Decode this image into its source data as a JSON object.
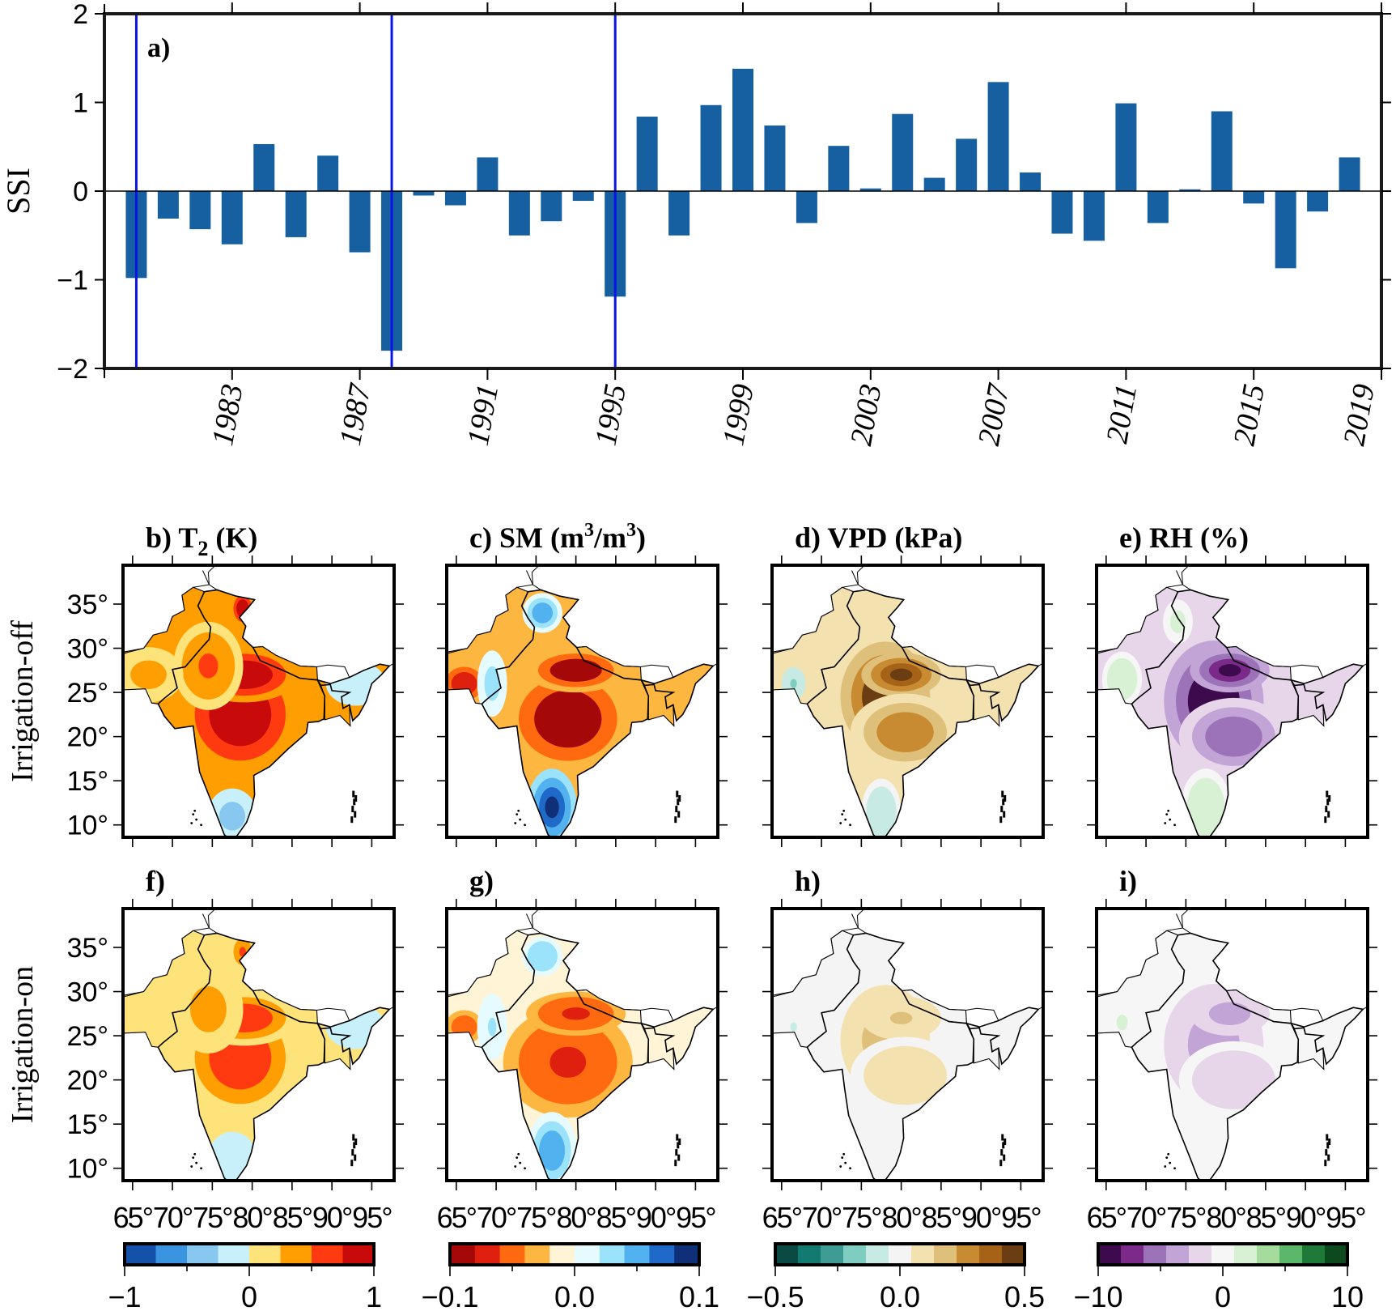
{
  "chart_data": [
    {
      "id": "a",
      "type": "bar",
      "panel_label": "a)",
      "title": "",
      "xlabel": "",
      "ylabel": "SSI",
      "ylim": [
        -2,
        2
      ],
      "yticks": [
        -2,
        -1,
        0,
        1,
        2
      ],
      "ytick_labels": [
        "−2",
        "−1",
        "0",
        "1",
        "2"
      ],
      "xlim": [
        1979,
        2019
      ],
      "xticks": [
        1983,
        1987,
        1991,
        1995,
        1999,
        2003,
        2007,
        2011,
        2015,
        2019
      ],
      "xtick_labels": [
        "1983",
        "1987",
        "1991",
        "1995",
        "1999",
        "2003",
        "2007",
        "2011",
        "2015",
        "2019"
      ],
      "bar_color": "#1660a2",
      "x": [
        1980,
        1981,
        1982,
        1983,
        1984,
        1985,
        1986,
        1987,
        1988,
        1989,
        1990,
        1991,
        1992,
        1993,
        1994,
        1995,
        1996,
        1997,
        1998,
        1999,
        2000,
        2001,
        2002,
        2003,
        2004,
        2005,
        2006,
        2007,
        2008,
        2009,
        2010,
        2011,
        2012,
        2013,
        2014,
        2015,
        2016,
        2017,
        2018
      ],
      "values": [
        -0.98,
        -0.31,
        -0.43,
        -0.6,
        0.53,
        -0.52,
        0.4,
        -0.69,
        -1.8,
        -0.05,
        -0.16,
        0.38,
        -0.5,
        -0.34,
        -0.11,
        -1.19,
        0.84,
        -0.5,
        0.97,
        1.38,
        0.74,
        -0.36,
        0.51,
        0.03,
        0.87,
        0.15,
        0.59,
        1.23,
        0.21,
        -0.48,
        -0.56,
        0.99,
        -0.36,
        0.02,
        0.9,
        -0.14,
        -0.87,
        -0.23,
        0.38
      ],
      "highlight_years": [
        1980,
        1988,
        1995
      ],
      "highlight_color": "#0a14e6",
      "grid": false,
      "zero_line": true
    },
    {
      "type": "heatmap",
      "description": "Spatial maps over South Asia, composite anomalies",
      "row_labels": [
        "Irrigation-off",
        "Irrigation-on"
      ],
      "lon_ticks": [
        65,
        70,
        75,
        80,
        85,
        90,
        95
      ],
      "lat_ticks": [
        35,
        30,
        25,
        20,
        15,
        10
      ],
      "lon_tick_labels": [
        "65°",
        "70°",
        "75°",
        "80°",
        "85°",
        "90°",
        "95°"
      ],
      "lat_tick_labels": [
        "35°",
        "30°",
        "25°",
        "20°",
        "15°",
        "10°"
      ],
      "panels": [
        {
          "id": "b",
          "label": "b)",
          "variable": "T2",
          "title": "b) T",
          "title_sub": "2",
          "title_unit": " (K)",
          "row": 0,
          "col": 0,
          "intensity": 1.0
        },
        {
          "id": "c",
          "label": "c)",
          "variable": "SM",
          "title": "c) SM (m",
          "title_sup1": "3",
          "title_mid": "/m",
          "title_sup2": "3",
          "title_end": ")",
          "row": 0,
          "col": 1,
          "intensity": 1.0
        },
        {
          "id": "d",
          "label": "d)",
          "variable": "VPD",
          "title": "d) VPD (kPa)",
          "row": 0,
          "col": 2,
          "intensity": 1.0
        },
        {
          "id": "e",
          "label": "e)",
          "variable": "RH",
          "title": "e) RH (%)",
          "row": 0,
          "col": 3,
          "intensity": 1.0
        },
        {
          "id": "f",
          "label": "f)",
          "variable": "T2",
          "title": "f)",
          "row": 1,
          "col": 0,
          "intensity": 0.6
        },
        {
          "id": "g",
          "label": "g)",
          "variable": "SM",
          "title": "g)",
          "row": 1,
          "col": 1,
          "intensity": 0.7
        },
        {
          "id": "h",
          "label": "h)",
          "variable": "VPD",
          "title": "h)",
          "row": 1,
          "col": 2,
          "intensity": 0.35
        },
        {
          "id": "i",
          "label": "i)",
          "variable": "RH",
          "title": "i)",
          "row": 1,
          "col": 3,
          "intensity": 0.4
        }
      ],
      "colorbars": [
        {
          "variable": "T2",
          "range": [
            -1,
            1
          ],
          "tick_labels": [
            "−1",
            "0",
            "1"
          ],
          "ticks": [
            -1,
            -0.5,
            0,
            0.5,
            1
          ],
          "colors": [
            "#1352a8",
            "#3a94e0",
            "#88c8f0",
            "#c8f0fb",
            "#fde37a",
            "#ff9e00",
            "#ff3a10",
            "#c80a0a"
          ]
        },
        {
          "variable": "SM",
          "range": [
            -0.1,
            0.1
          ],
          "tick_labels": [
            "−0.1",
            "0.0",
            "0.1"
          ],
          "ticks": [
            -0.1,
            -0.05,
            0,
            0.05,
            0.1
          ],
          "colors": [
            "#a50808",
            "#e0200e",
            "#ff6a10",
            "#fdb640",
            "#fff4d6",
            "#e6fbff",
            "#9be2fb",
            "#52b2f0",
            "#1f6ac8",
            "#0f2f78"
          ]
        },
        {
          "variable": "VPD",
          "range": [
            -0.5,
            0.5
          ],
          "tick_labels": [
            "−0.5",
            "0.0",
            "0.5"
          ],
          "ticks": [
            -0.5,
            -0.25,
            0,
            0.25,
            0.5
          ],
          "colors": [
            "#0b4a42",
            "#127a70",
            "#3f9c94",
            "#7fcdc0",
            "#c7eae4",
            "#f4f4f4",
            "#f3e2b0",
            "#dfc07a",
            "#c98b32",
            "#a66318",
            "#6a3e12"
          ]
        },
        {
          "variable": "RH",
          "range": [
            -10,
            10
          ],
          "tick_labels": [
            "−10",
            "0",
            "10"
          ],
          "ticks": [
            -10,
            -5,
            0,
            5,
            10
          ],
          "colors": [
            "#3d0a4e",
            "#7b2a8a",
            "#9c73b8",
            "#c2a4d6",
            "#e7d5ea",
            "#f6f6f6",
            "#d8f0d3",
            "#a5db9d",
            "#5bb76a",
            "#1f7a3a",
            "#0c4a1e"
          ]
        }
      ]
    }
  ]
}
